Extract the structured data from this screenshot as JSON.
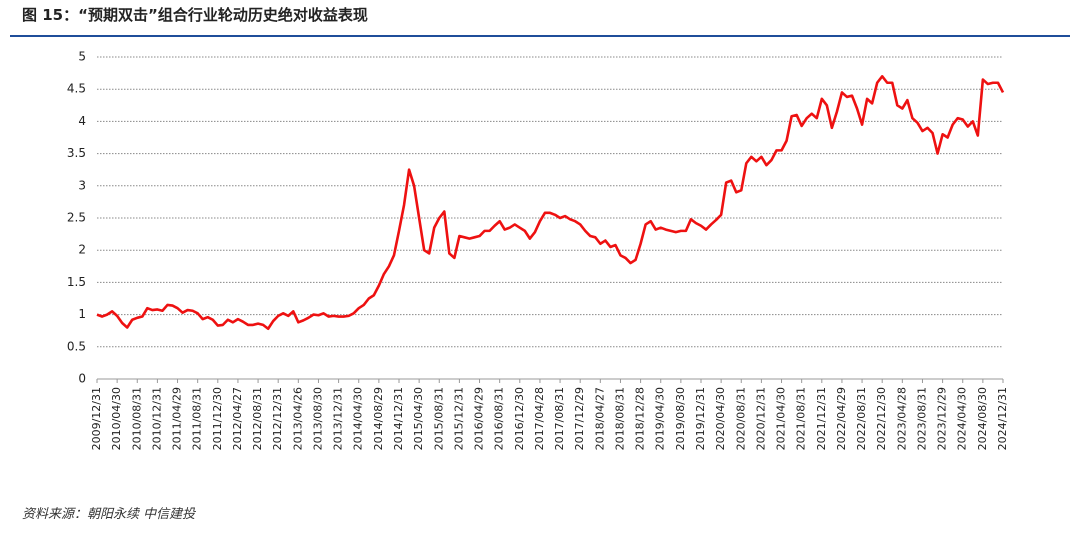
{
  "chart_data": {
    "type": "line",
    "title": "图 15：“预期双击”组合行业轮动历史绝对收益表现",
    "source": "资料来源：朝阳永续  中信建投",
    "categories": [
      "2009/12/31",
      null,
      null,
      null,
      "2010/04/30",
      null,
      null,
      null,
      "2010/08/31",
      null,
      null,
      null,
      "2010/12/31",
      null,
      null,
      null,
      "2011/04/29",
      null,
      null,
      null,
      "2011/08/31",
      null,
      null,
      null,
      "2011/12/30",
      null,
      null,
      null,
      "2012/04/27",
      null,
      null,
      null,
      "2012/08/31",
      null,
      null,
      null,
      "2012/12/31",
      null,
      null,
      null,
      "2013/04/26",
      null,
      null,
      null,
      "2013/08/30",
      null,
      null,
      null,
      "2013/12/31",
      null,
      null,
      null,
      "2014/04/30",
      null,
      null,
      null,
      "2014/08/29",
      null,
      null,
      null,
      "2014/12/31",
      null,
      null,
      null,
      "2015/04/30",
      null,
      null,
      null,
      "2015/08/31",
      null,
      null,
      null,
      "2015/12/31",
      null,
      null,
      null,
      "2016/04/29",
      null,
      null,
      null,
      "2016/08/31",
      null,
      null,
      null,
      "2016/12/30",
      null,
      null,
      null,
      "2017/04/28",
      null,
      null,
      null,
      "2017/08/31",
      null,
      null,
      null,
      "2017/12/29",
      null,
      null,
      null,
      "2018/04/27",
      null,
      null,
      null,
      "2018/08/31",
      null,
      null,
      null,
      "2018/12/28",
      null,
      null,
      null,
      "2019/04/30",
      null,
      null,
      null,
      "2019/08/30",
      null,
      null,
      null,
      "2019/12/31",
      null,
      null,
      null,
      "2020/04/30",
      null,
      null,
      null,
      "2020/08/31",
      null,
      null,
      null,
      "2020/12/31",
      null,
      null,
      null,
      "2021/04/30",
      null,
      null,
      null,
      "2021/08/31",
      null,
      null,
      null,
      "2021/12/31",
      null,
      null,
      null,
      "2022/04/29",
      null,
      null,
      null,
      "2022/08/31",
      null,
      null,
      null,
      "2022/12/30",
      null,
      null,
      null,
      "2023/04/28",
      null,
      null,
      null,
      "2023/08/31",
      null,
      null,
      null,
      "2023/12/29",
      null,
      null,
      null,
      "2024/04/30",
      null,
      null,
      null,
      "2024/08/30",
      null,
      null,
      null,
      "2024/12/31"
    ],
    "values": [
      1.0,
      0.97,
      1.0,
      1.05,
      0.98,
      0.87,
      0.8,
      0.92,
      0.95,
      0.97,
      1.1,
      1.07,
      1.08,
      1.06,
      1.15,
      1.14,
      1.1,
      1.03,
      1.07,
      1.06,
      1.02,
      0.93,
      0.96,
      0.92,
      0.83,
      0.84,
      0.92,
      0.88,
      0.93,
      0.89,
      0.84,
      0.84,
      0.86,
      0.84,
      0.78,
      0.9,
      0.98,
      1.02,
      0.98,
      1.05,
      0.88,
      0.91,
      0.95,
      1.0,
      0.99,
      1.02,
      0.97,
      0.98,
      0.97,
      0.97,
      0.98,
      1.02,
      1.1,
      1.15,
      1.25,
      1.3,
      1.45,
      1.63,
      1.75,
      1.92,
      2.3,
      2.7,
      3.25,
      3.0,
      2.5,
      2.0,
      1.95,
      2.35,
      2.5,
      2.6,
      1.95,
      1.88,
      2.22,
      2.2,
      2.18,
      2.2,
      2.22,
      2.3,
      2.3,
      2.38,
      2.45,
      2.32,
      2.35,
      2.4,
      2.35,
      2.3,
      2.18,
      2.28,
      2.45,
      2.58,
      2.58,
      2.55,
      2.5,
      2.53,
      2.48,
      2.45,
      2.4,
      2.3,
      2.22,
      2.2,
      2.1,
      2.15,
      2.05,
      2.08,
      1.92,
      1.88,
      1.8,
      1.85,
      2.1,
      2.4,
      2.45,
      2.32,
      2.35,
      2.32,
      2.3,
      2.28,
      2.3,
      2.3,
      2.48,
      2.42,
      2.38,
      2.32,
      2.4,
      2.47,
      2.55,
      3.05,
      3.08,
      2.9,
      2.93,
      3.35,
      3.45,
      3.38,
      3.45,
      3.32,
      3.4,
      3.55,
      3.55,
      3.7,
      4.08,
      4.1,
      3.93,
      4.05,
      4.12,
      4.05,
      4.35,
      4.25,
      3.9,
      4.15,
      4.45,
      4.38,
      4.4,
      4.2,
      3.95,
      4.35,
      4.28,
      4.6,
      4.7,
      4.6,
      4.6,
      4.25,
      4.2,
      4.33,
      4.05,
      3.98,
      3.85,
      3.9,
      3.82,
      3.5,
      3.8,
      3.75,
      3.95,
      4.05,
      4.03,
      3.92,
      4.0,
      3.78,
      4.65,
      4.58,
      4.6,
      4.6,
      4.45
    ],
    "color": "#ee1111",
    "ylim": [
      0,
      5
    ],
    "yticks": [
      0,
      0.5,
      1,
      1.5,
      2,
      2.5,
      3,
      3.5,
      4,
      4.5,
      5
    ],
    "grid": true
  }
}
